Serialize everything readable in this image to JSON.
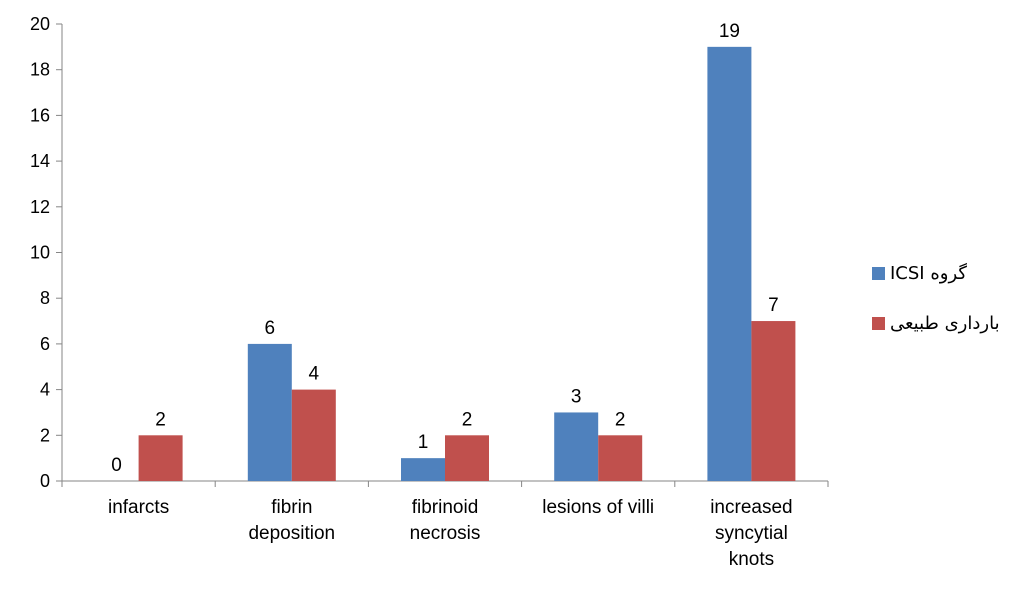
{
  "chart_data": {
    "type": "bar",
    "categories": [
      [
        "infarcts"
      ],
      [
        "fibrin",
        "deposition"
      ],
      [
        "fibrinoid",
        "necrosis"
      ],
      [
        "lesions of villi"
      ],
      [
        "increased",
        "syncytial",
        "knots"
      ]
    ],
    "series": [
      {
        "name": "گروه ICSI",
        "color": "#4F81BD",
        "values": [
          0,
          6,
          1,
          3,
          19
        ]
      },
      {
        "name": "بارداری طبیعی",
        "color": "#C0504D",
        "values": [
          2,
          4,
          2,
          2,
          7
        ]
      }
    ],
    "ylim": [
      0,
      20
    ],
    "yticks": [
      0,
      2,
      4,
      6,
      8,
      10,
      12,
      14,
      16,
      18,
      20
    ],
    "grid": false,
    "data_labels": true,
    "legend_position": "right"
  }
}
